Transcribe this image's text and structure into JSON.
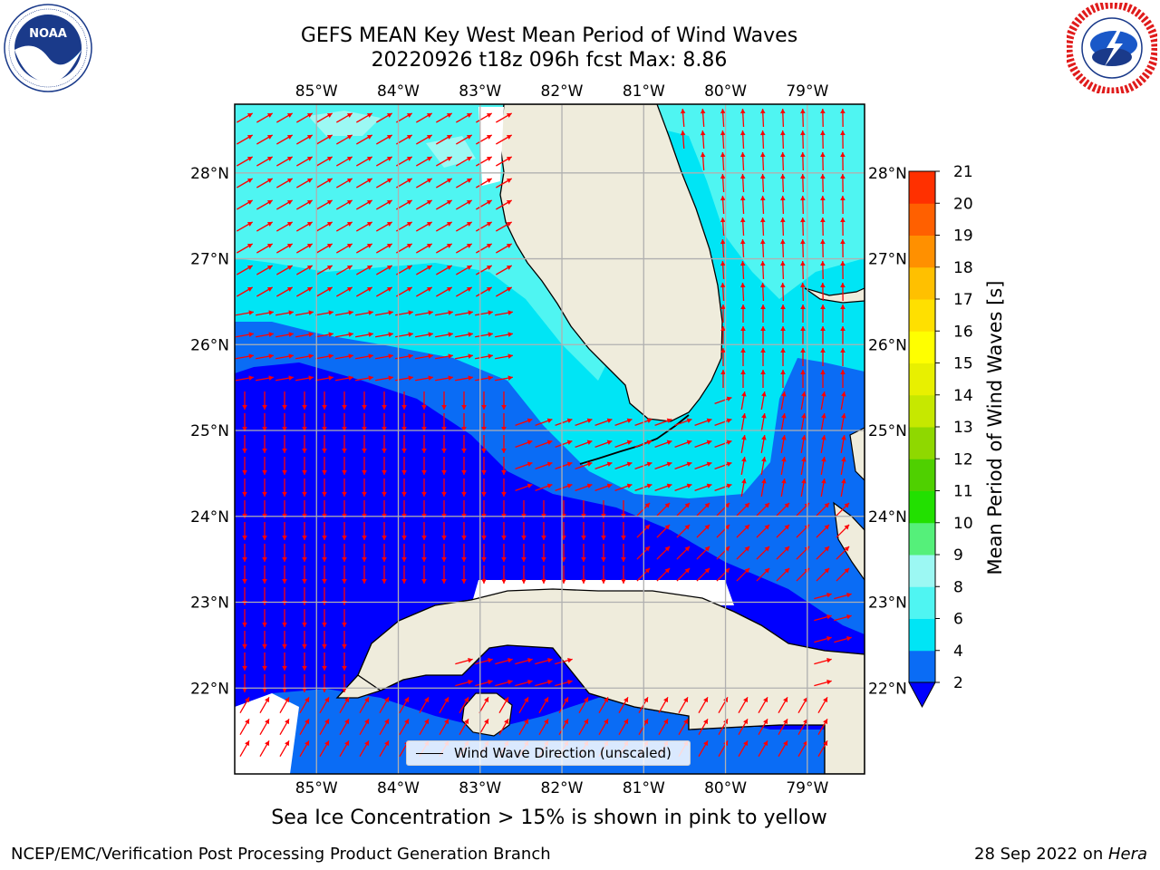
{
  "title": {
    "line1": "GEFS MEAN Key West Mean Period of Wind Waves",
    "line2": "20220926 t18z 096h fcst   Max: 8.86"
  },
  "logos": {
    "left": {
      "name": "NOAA",
      "ring_text": "NATIONAL OCEANIC AND ATMOSPHERIC ADMINISTRATION · U.S. DEPARTMENT OF COMMERCE"
    },
    "right": {
      "ring_text": "NATIONAL WEATHER SERVICE"
    }
  },
  "map": {
    "lon_labels": [
      "85°W",
      "84°W",
      "83°W",
      "82°W",
      "81°W",
      "80°W",
      "79°W"
    ],
    "lat_labels": [
      "28°N",
      "27°N",
      "26°N",
      "25°N",
      "24°N",
      "23°N",
      "22°N"
    ],
    "extent": {
      "lon_min": -86.0,
      "lon_max": -78.3,
      "lat_min": 21.0,
      "lat_max": 28.8
    },
    "colors": {
      "land": "#efecdc",
      "ice": "#ffffff",
      "arrow": "#ff0000",
      "grid": "#b0b0b0"
    }
  },
  "legend": {
    "label": "Wind Wave Direction (unscaled)"
  },
  "colorbar": {
    "label": "Mean Period of Wind Waves [s]",
    "ticks": [
      "2",
      "4",
      "6",
      "8",
      "9",
      "10",
      "11",
      "12",
      "13",
      "14",
      "15",
      "16",
      "17",
      "18",
      "19",
      "20",
      "21"
    ],
    "colors": [
      "#0a6cf5",
      "#00e5f5",
      "#4ff5f2",
      "#9cf8f3",
      "#55f07a",
      "#22e000",
      "#4fd000",
      "#8fd800",
      "#c6e800",
      "#e8f000",
      "#ffff00",
      "#ffe000",
      "#ffc000",
      "#ff9000",
      "#ff6000",
      "#ff3000",
      "#ff0000"
    ],
    "under_color": "#0000ff"
  },
  "caption": "Sea Ice Concentration > 15% is shown in pink to yellow",
  "footer": {
    "left": "NCEP/EMC/Verification Post Processing Product Generation Branch",
    "right_prefix": "28 Sep 2022 on ",
    "right_italic": "Hera"
  }
}
